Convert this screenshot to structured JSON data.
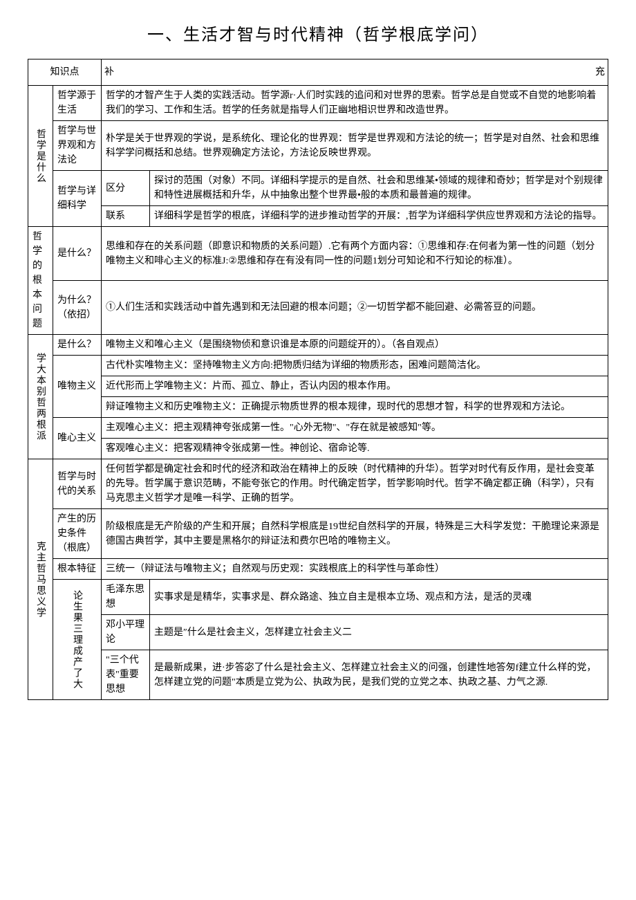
{
  "title": "一、生活才智与时代精神（哲学根底学问）",
  "headers": {
    "col1": "知识点",
    "col2left": "补",
    "col2right": "充"
  },
  "section1": {
    "label": "哲学是什么",
    "row1": {
      "sub": "哲学源于生活",
      "text": "哲学的才智产生于人类的实践活动。哲学源r·人们时实践的追问和对世界的思索。哲学总是自觉或不自觉的地影响着我们的学习、工作和生活。哲学的任务就是指导人们正幽地相识世界和改造世界。"
    },
    "row2": {
      "sub": "哲学与世界观和方法论",
      "text": "朴学是关于世界观的学说，是系统化、理论化的世界观：哲学是世界观和方法论的统一；哲学是对自然、社会和思维科学学问概括和总结。世界观确定方法论，方法论反映世界观。"
    },
    "row3": {
      "sub": "哲学与详细科学",
      "k1": "区分",
      "v1": "探讨的范围（对象）不同。详细科学提示的是自然、社会和思维某•领域的规律和奇妙；哲学是对个别规律和特性进展概括和升华，从中抽象出整个世界最•般的本质和最普遍的规律。",
      "k2": "联系",
      "v2": "详细科学是哲学的根底，详细科学的进步推动哲学的开展：,哲学为详细科学供应世界观和方法论的指导。"
    }
  },
  "section2": {
    "label": "哲学的根本问题",
    "row1": {
      "sub": "是什么？",
      "text": "思维和存在的关系问题（即意识和物质的关系问题）.它有两个方面内容：①思维和存:在何者为第一性的问题（划分唯物主义和啡心主义的标准J:②思维和存在有没有同一性的问题1划分可知论和不行知论的标准）。"
    },
    "row2": {
      "sub": "为什么？（依招）",
      "text": "①人们生活和实践活动中首先遇到和无法回避的根本问题；②一切哲学都不能回避、必需答豆的问题。"
    }
  },
  "section3": {
    "label": "学大本别哲两根派",
    "row1": {
      "sub": "是什么？",
      "text": "唯物主义和唯心主义（是围绕物侦和意识谁是本原的问题绽开的）。（各自观点）"
    },
    "row2": {
      "sub": "唯物主义",
      "t1": "古代朴实唯物主义：坚持唯物主义方向:把物质归结为详细的物质形态，困难问题简洁化。",
      "t2": "近代形而上学唯物主义：片而、孤立、静止，否认内因的根本作用。",
      "t3": "辩证唯物主义和历史唯物主义：正确提示物质世界的根本规律，现时代的思想才智，科学的世界观和方法论。"
    },
    "row3": {
      "sub": "唯心主义",
      "t1": "主观唯心主义：把主观精神夸张成第一性。\"心外无物\"、\"存在就是被感知\"等。",
      "t2": "客观唯心主义：把客观精神令张成第一性。神创论、宿命论等."
    }
  },
  "section4": {
    "label": "克主哲马思义学",
    "row1": {
      "sub": "哲学与时代的关系",
      "text": "任何哲学都是确定社会和时代的经济和政治在精神上的反映（时代精神的升华）。哲学对时代有反作用，是社会变革的先导。哲学属于意识范畴，不能夸张它的作用。时代确定哲学，哲学影响时代。哲学不确定都正确（科学），只有马克思主义哲学才是唯一科学、正确的哲学。"
    },
    "row2": {
      "sub": "产生的历史条件（根底）",
      "text": "阶级根底是无产阶级的产生和开展；自然科学根底是19世纪自然科学的开展，特殊是三大科学发觉：干脆理论来源是德国古典哲学，其中主要是黑格尔的辩证法和费尔巴哈的唯物主义。"
    },
    "row3": {
      "sub": "根本特征",
      "text": "三统一（辩证法与唯物主义；自然观与历史观：实践根底上的科学性与革命性）"
    },
    "row4": {
      "sub": "论生果三理成产了大",
      "k1": "毛泽东思想",
      "v1": "实事求是是精华，实事求是、群众路途、独立自主是根本立场、观点和方法，是活的灵魂",
      "k2": "邓小平理论",
      "v2": "主题是″什么是社会主义，怎样建立社会主义二",
      "k3": "\"三个代表\"重要思想",
      "v3": "是最新成果，进·步答宓了什么是社会主义、怎样建立社会主义的问强，创建性地答匆f建立什么样的党，怎样建立党的问题\"本质是立党为公、执政为民，是我们党的立党之本、执政之基、力气之源."
    }
  }
}
